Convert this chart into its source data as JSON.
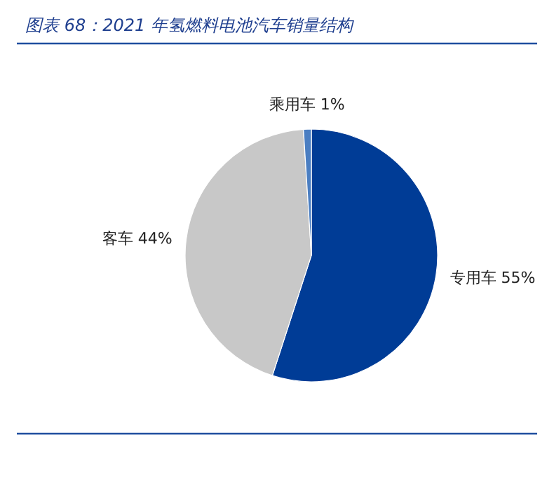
{
  "chart_data": {
    "type": "pie",
    "title": "图表 68：2021 年氢燃料电池汽车销量结构",
    "categories": [
      "专用车",
      "客车",
      "乘用车"
    ],
    "values": [
      55,
      44,
      1
    ],
    "value_labels": [
      "55%",
      "44%",
      "1%"
    ],
    "colors": [
      "#003c96",
      "#c8c8c8",
      "#4a7ec2"
    ]
  }
}
